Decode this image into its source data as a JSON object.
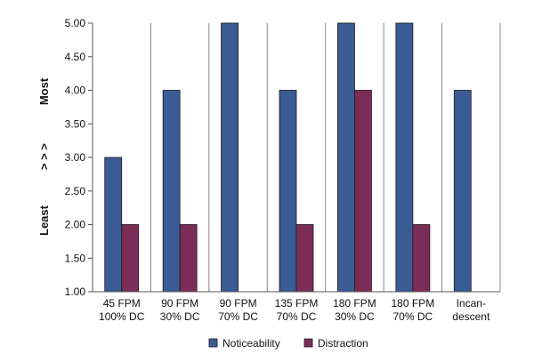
{
  "chart_data": {
    "type": "bar",
    "categories": [
      [
        "45 FPM",
        "100% DC"
      ],
      [
        "90 FPM",
        "30% DC"
      ],
      [
        "90 FPM",
        "70% DC"
      ],
      [
        "135 FPM",
        "70% DC"
      ],
      [
        "180 FPM",
        "30% DC"
      ],
      [
        "180 FPM",
        "70% DC"
      ],
      [
        "Incan-",
        "descent"
      ]
    ],
    "series": [
      {
        "name": "Noticeability",
        "color": "#3B5B95",
        "values": [
          3.0,
          4.0,
          5.0,
          4.0,
          5.0,
          5.0,
          4.0
        ]
      },
      {
        "name": "Distraction",
        "color": "#7B2D57",
        "values": [
          2.0,
          2.0,
          null,
          2.0,
          4.0,
          2.0,
          null
        ]
      }
    ],
    "ylim": [
      1.0,
      5.0
    ],
    "yticks": [
      "1.00",
      "1.50",
      "2.00",
      "2.50",
      "3.00",
      "3.50",
      "4.00",
      "4.50",
      "5.00"
    ],
    "side_labels": {
      "most": "Most",
      "arrows": "> > >",
      "least": "Least"
    },
    "legend_position": "bottom",
    "grid": "vertical category separators"
  }
}
